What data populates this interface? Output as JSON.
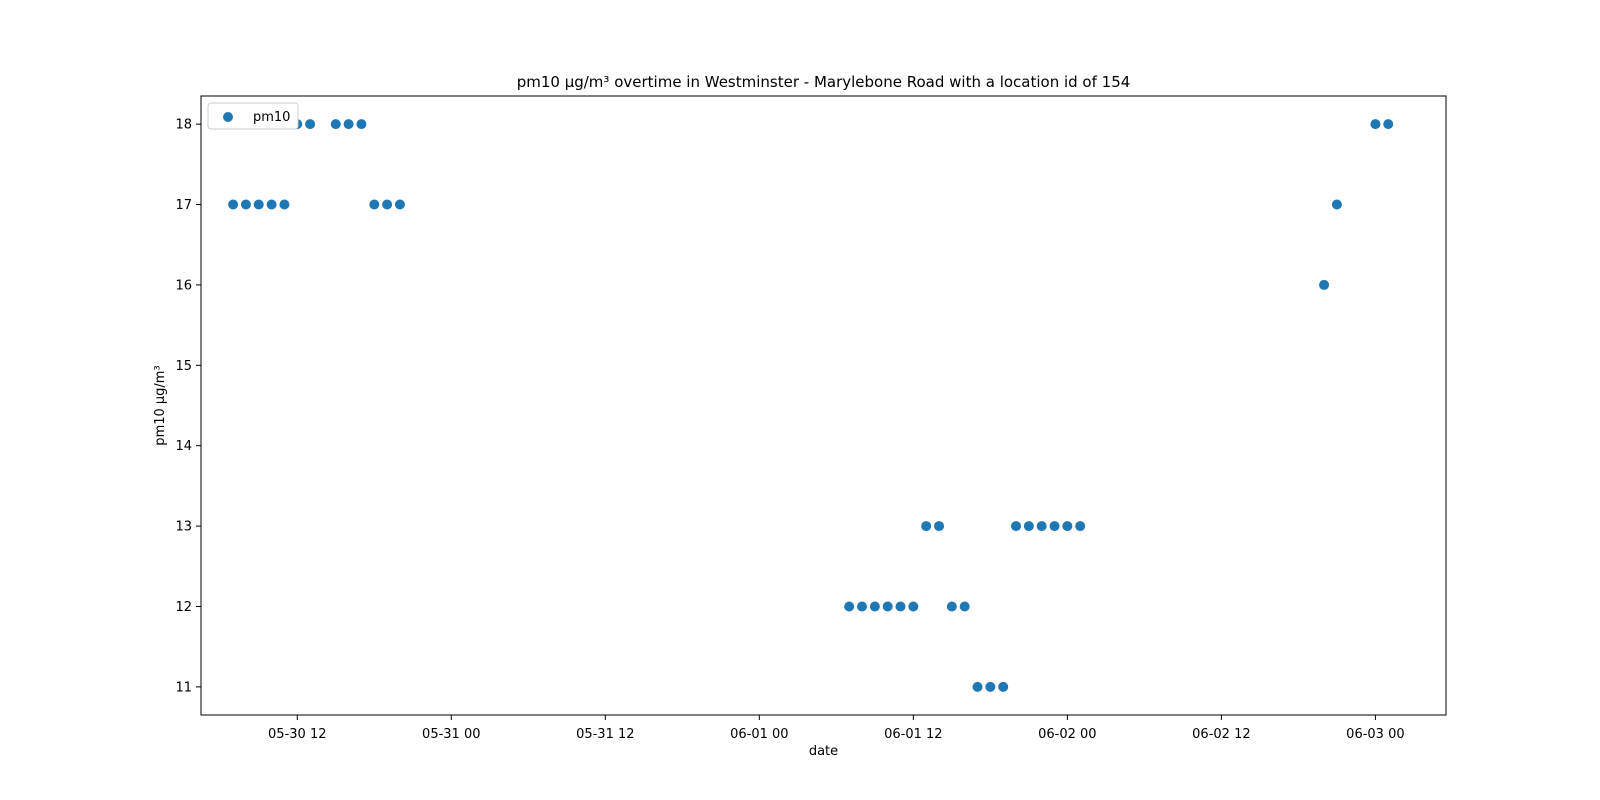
{
  "chart_data": {
    "type": "scatter",
    "title": "pm10 µg/m³ overtime in Westminster - Marylebone Road with a location id of 154",
    "xlabel": "date",
    "ylabel": "pm10 µg/m³",
    "x_ticks": [
      "05-30 12",
      "05-31 00",
      "05-31 12",
      "06-01 00",
      "06-01 12",
      "06-02 00",
      "06-02 12",
      "06-03 00"
    ],
    "y_ticks": [
      11,
      12,
      13,
      14,
      15,
      16,
      17,
      18
    ],
    "x_range": [
      "2023-05-30 04:30",
      "2023-06-03 05:30"
    ],
    "y_range": [
      10.65,
      18.35
    ],
    "grid": false,
    "legend": {
      "placement": "top-left",
      "entries": [
        "pm10"
      ]
    },
    "colors": {
      "series": "#1f77b4"
    },
    "series": [
      {
        "name": "pm10",
        "points": [
          {
            "x": "2023-05-30 07:00",
            "y": 17
          },
          {
            "x": "2023-05-30 08:00",
            "y": 17
          },
          {
            "x": "2023-05-30 09:00",
            "y": 17
          },
          {
            "x": "2023-05-30 10:00",
            "y": 17
          },
          {
            "x": "2023-05-30 11:00",
            "y": 17
          },
          {
            "x": "2023-05-30 12:00",
            "y": 18
          },
          {
            "x": "2023-05-30 13:00",
            "y": 18
          },
          {
            "x": "2023-05-30 15:00",
            "y": 18
          },
          {
            "x": "2023-05-30 16:00",
            "y": 18
          },
          {
            "x": "2023-05-30 17:00",
            "y": 18
          },
          {
            "x": "2023-05-30 18:00",
            "y": 17
          },
          {
            "x": "2023-05-30 19:00",
            "y": 17
          },
          {
            "x": "2023-05-30 20:00",
            "y": 17
          },
          {
            "x": "2023-06-01 07:00",
            "y": 12
          },
          {
            "x": "2023-06-01 08:00",
            "y": 12
          },
          {
            "x": "2023-06-01 09:00",
            "y": 12
          },
          {
            "x": "2023-06-01 10:00",
            "y": 12
          },
          {
            "x": "2023-06-01 11:00",
            "y": 12
          },
          {
            "x": "2023-06-01 12:00",
            "y": 12
          },
          {
            "x": "2023-06-01 13:00",
            "y": 13
          },
          {
            "x": "2023-06-01 14:00",
            "y": 13
          },
          {
            "x": "2023-06-01 15:00",
            "y": 12
          },
          {
            "x": "2023-06-01 16:00",
            "y": 12
          },
          {
            "x": "2023-06-01 17:00",
            "y": 11
          },
          {
            "x": "2023-06-01 18:00",
            "y": 11
          },
          {
            "x": "2023-06-01 19:00",
            "y": 11
          },
          {
            "x": "2023-06-01 20:00",
            "y": 13
          },
          {
            "x": "2023-06-01 21:00",
            "y": 13
          },
          {
            "x": "2023-06-01 22:00",
            "y": 13
          },
          {
            "x": "2023-06-01 23:00",
            "y": 13
          },
          {
            "x": "2023-06-02 00:00",
            "y": 13
          },
          {
            "x": "2023-06-02 01:00",
            "y": 13
          },
          {
            "x": "2023-06-02 20:00",
            "y": 16
          },
          {
            "x": "2023-06-02 21:00",
            "y": 17
          },
          {
            "x": "2023-06-03 00:00",
            "y": 18
          },
          {
            "x": "2023-06-03 01:00",
            "y": 18
          }
        ]
      }
    ]
  }
}
